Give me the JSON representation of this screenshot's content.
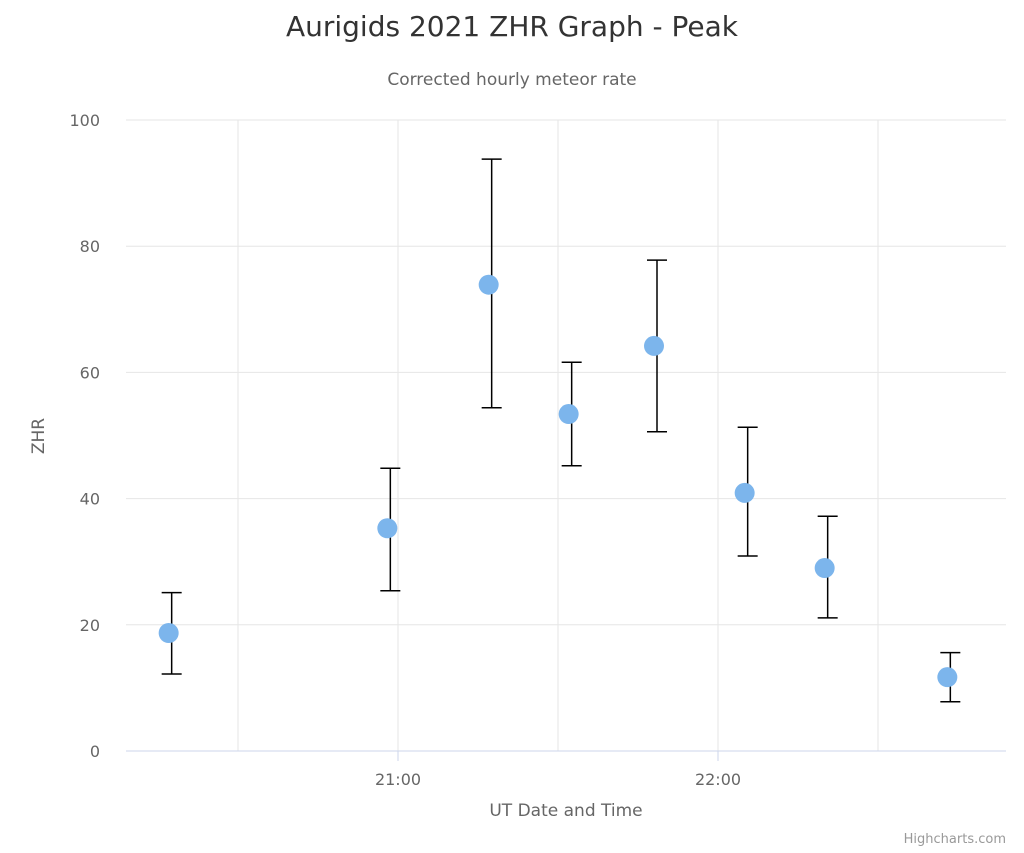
{
  "title": "Aurigids 2021 ZHR Graph - Peak",
  "subtitle": "Corrected hourly meteor rate",
  "credits": "Highcharts.com",
  "colors": {
    "marker": "#7cb5ec",
    "errorbar": "#000000",
    "grid": "#e6e6e6",
    "axis_line": "#ccd6eb"
  },
  "chart_data": {
    "type": "scatter",
    "title": "Aurigids 2021 ZHR Graph - Peak",
    "subtitle": "Corrected hourly meteor rate",
    "xlabel": "UT Date and Time",
    "ylabel": "ZHR",
    "ylim": [
      0,
      100
    ],
    "yticks": [
      0,
      20,
      40,
      60,
      80,
      100
    ],
    "xticks": [
      "21:00",
      "22:00"
    ],
    "x_range": [
      "20:09",
      "22:54"
    ],
    "grid": true,
    "legend": "none",
    "series": [
      {
        "name": "ZHR",
        "type": "scatter",
        "x": [
          "20:17",
          "20:58",
          "21:17",
          "21:32",
          "21:48",
          "22:05",
          "22:20",
          "22:43"
        ],
        "values": [
          18.7,
          35.3,
          73.9,
          53.4,
          64.2,
          40.9,
          29.0,
          11.7
        ]
      },
      {
        "name": "ZHR error",
        "type": "errorbar",
        "x": [
          "20:17",
          "20:58",
          "21:17",
          "21:32",
          "21:48",
          "22:05",
          "22:20",
          "22:43"
        ],
        "low": [
          12.2,
          25.4,
          54.4,
          45.2,
          50.6,
          30.9,
          21.1,
          7.8
        ],
        "high": [
          25.1,
          44.8,
          93.8,
          61.6,
          77.8,
          51.3,
          37.2,
          15.6
        ]
      }
    ]
  }
}
